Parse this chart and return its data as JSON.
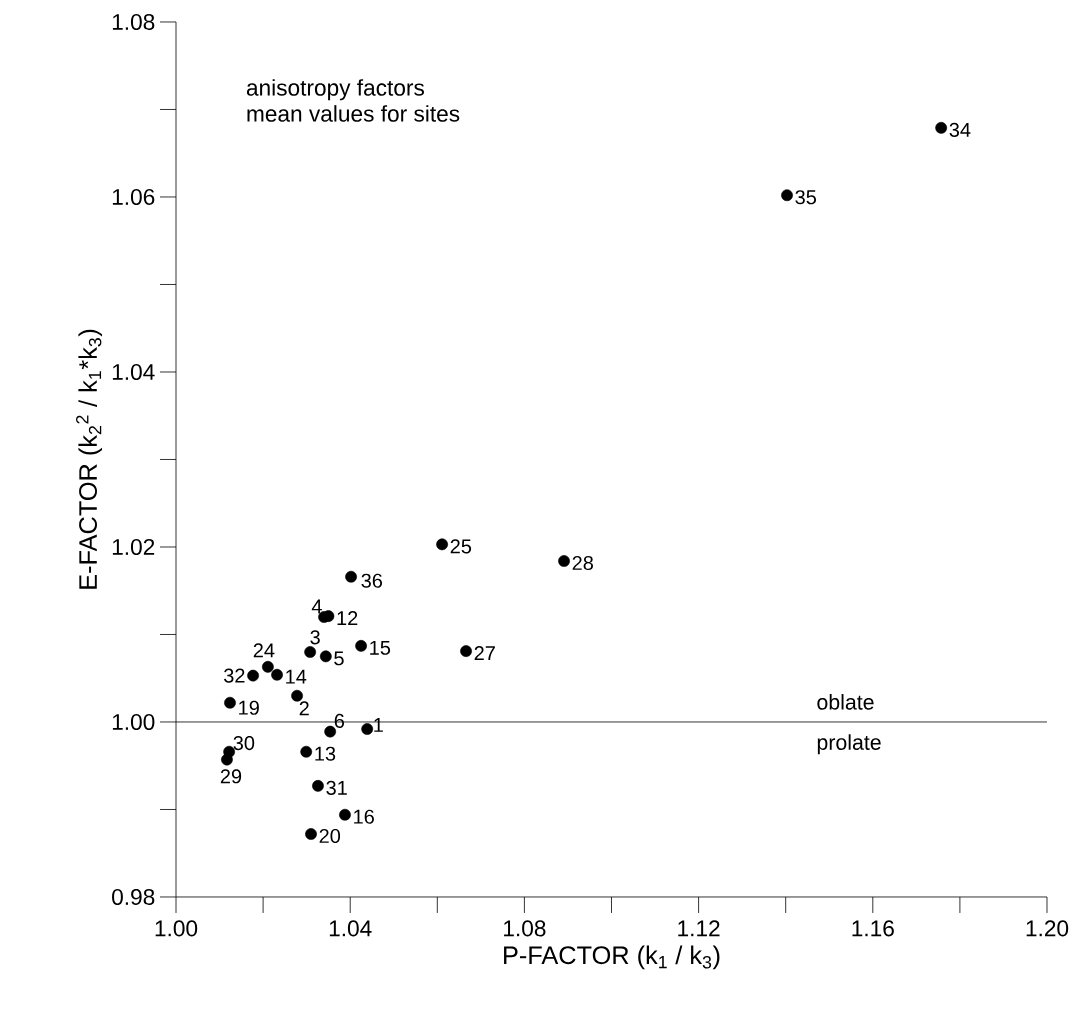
{
  "chart_data": {
    "type": "scatter",
    "xlabel": "P-FACTOR (k$_{1}$ / k$_{3}$)",
    "ylabel": "E-FACTOR (k$_{2}$$^{2}$ / k$_{1}$*k$_{3}$)",
    "x": [
      1.0402,
      1.034,
      1.035,
      1.0308,
      1.0344,
      1.0425,
      1.0666,
      1.0211,
      1.0177,
      1.0232,
      1.0124,
      1.0278,
      1.0354,
      1.0439,
      1.0122,
      1.0117,
      1.0299,
      1.0326,
      1.0388,
      1.031,
      1.0611,
      1.0891,
      1.1403,
      1.1757
    ],
    "values": [
      1.0166,
      1.012,
      1.0121,
      1.008,
      1.0075,
      1.0087,
      1.0081,
      1.0063,
      1.0053,
      1.0054,
      1.0022,
      1.003,
      0.9989,
      0.9992,
      0.9966,
      0.9957,
      0.9966,
      0.9927,
      0.9894,
      0.9872,
      1.0203,
      1.0184,
      1.0602,
      1.0679
    ],
    "color": "#000000",
    "marker": "circle",
    "grid": false,
    "xlim": [
      1.0,
      1.2
    ],
    "xticks": [
      {
        "value": 1.0,
        "label": "1.00"
      },
      {
        "value": 1.02,
        "label": null
      },
      1.04,
      {
        "value": 1.06,
        "label": null
      },
      1.08,
      {
        "value": 1.1,
        "label": null
      },
      1.12,
      {
        "value": 1.14,
        "label": null
      },
      1.16,
      {
        "value": 1.18,
        "label": null
      },
      {
        "value": 1.2,
        "label": "1.20"
      }
    ],
    "ylim": [
      0.98,
      1.08
    ],
    "yticks": [
      0.98,
      {
        "value": 0.99,
        "label": null
      },
      {
        "value": 1.0,
        "label": "1.00"
      },
      {
        "value": 1.01,
        "label": null
      },
      1.02,
      {
        "value": 1.03,
        "label": null
      },
      1.04,
      {
        "value": 1.05,
        "label": null
      },
      1.06,
      {
        "value": 1.07,
        "label": null
      },
      1.08
    ],
    "ref_lines": [
      {
        "axis": "y",
        "value": 1.0,
        "color": "#000000"
      }
    ],
    "annotations": [
      {
        "text": "36",
        "x": 1.0402,
        "y": 1.0166
      },
      {
        "text": "4",
        "x": 1.034,
        "y": 1.012
      },
      {
        "text": "12",
        "x": 1.035,
        "y": 1.0121
      },
      {
        "text": "3",
        "x": 1.0308,
        "y": 1.008
      },
      {
        "text": "5",
        "x": 1.0344,
        "y": 1.0075
      },
      {
        "text": "15",
        "x": 1.0425,
        "y": 1.0087
      },
      {
        "text": "27",
        "x": 1.0666,
        "y": 1.0081
      },
      {
        "text": "24",
        "x": 1.0211,
        "y": 1.0063
      },
      {
        "text": "32",
        "x": 1.0177,
        "y": 1.0053
      },
      {
        "text": "14",
        "x": 1.0232,
        "y": 1.0054
      },
      {
        "text": "19",
        "x": 1.0124,
        "y": 1.0022
      },
      {
        "text": "2",
        "x": 1.0278,
        "y": 1.003
      },
      {
        "text": "6",
        "x": 1.0354,
        "y": 0.9989
      },
      {
        "text": "1",
        "x": 1.0439,
        "y": 0.9992
      },
      {
        "text": "30",
        "x": 1.0122,
        "y": 0.9966
      },
      {
        "text": "29",
        "x": 1.0117,
        "y": 0.9957
      },
      {
        "text": "13",
        "x": 1.0299,
        "y": 0.9966
      },
      {
        "text": "31",
        "x": 1.0326,
        "y": 0.9927
      },
      {
        "text": "16",
        "x": 1.0388,
        "y": 0.9894
      },
      {
        "text": "20",
        "x": 1.031,
        "y": 0.9872
      },
      {
        "text": "25",
        "x": 1.0611,
        "y": 1.0203
      },
      {
        "text": "28",
        "x": 1.0891,
        "y": 1.0184
      },
      {
        "text": "35",
        "x": 1.1403,
        "y": 1.0602
      },
      {
        "text": "34",
        "x": 1.1757,
        "y": 1.0679
      },
      "anisotropy factors",
      "mean values for sites",
      "oblate",
      "prolate"
    ]
  }
}
